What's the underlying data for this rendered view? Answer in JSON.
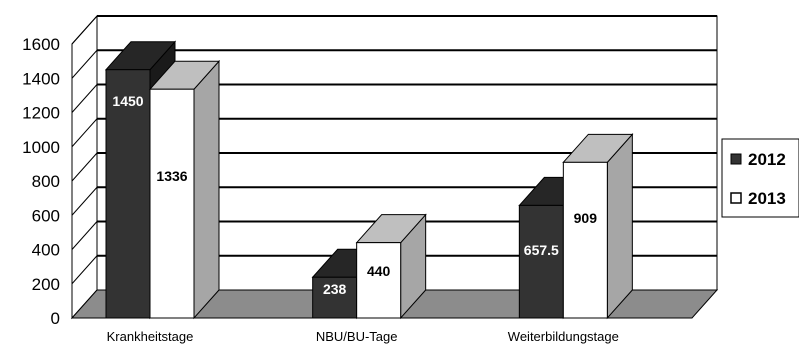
{
  "chart_data": {
    "type": "bar",
    "style": "3d-clustered-column",
    "categories": [
      "Krankheitstage",
      "NBU/BU-Tage",
      "Weiterbildungstage"
    ],
    "series": [
      {
        "name": "2012",
        "values": [
          1450,
          238,
          657.5
        ],
        "labels": [
          "1450",
          "238",
          "657.5"
        ],
        "color": "#333333"
      },
      {
        "name": "2013",
        "values": [
          1336,
          440,
          909
        ],
        "labels": [
          "1336",
          "440",
          "909"
        ],
        "color": "#ffffff"
      }
    ],
    "ylim": [
      0,
      1600
    ],
    "yticks": [
      "0",
      "200",
      "400",
      "600",
      "800",
      "1000",
      "1200",
      "1400",
      "1600"
    ],
    "title": "",
    "xlabel": "",
    "ylabel": "",
    "grid": true,
    "legend_position": "right",
    "colors": {
      "grid": "#000000",
      "floor": "#8c8c8c",
      "side_dark": "#1a1a1a",
      "top_dark": "#262626",
      "side_light": "#a6a6a6",
      "top_light": "#bfbfbf"
    }
  }
}
